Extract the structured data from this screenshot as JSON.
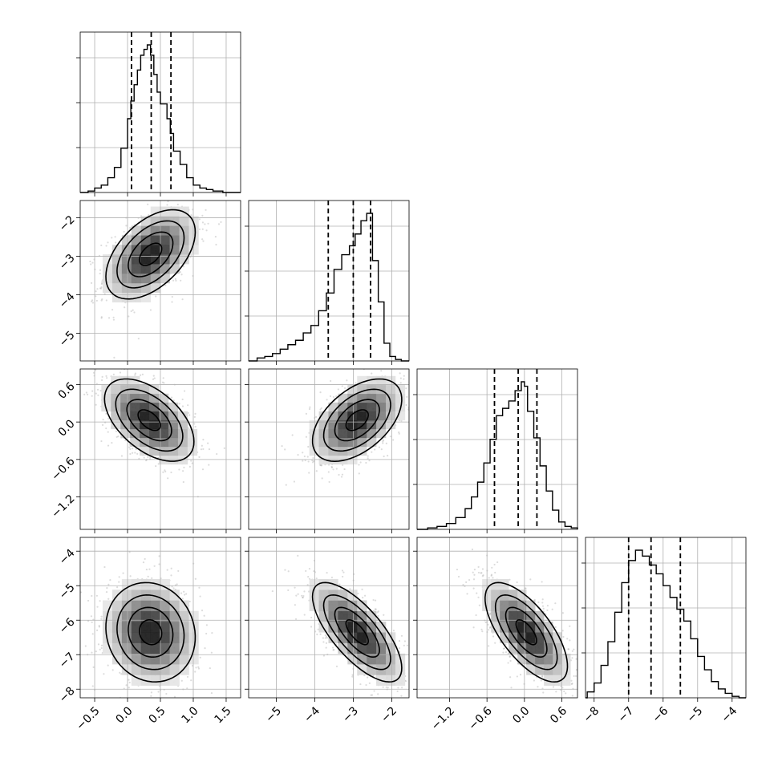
{
  "chart_data": {
    "type": "corner",
    "parameters": [
      {
        "range": [
          -0.72,
          1.72
        ],
        "ticks": [
          -0.5,
          0.0,
          0.5,
          1.0,
          1.5
        ],
        "tick_labels": [
          "−0.5",
          "0.0",
          "0.5",
          "1.0",
          "1.5"
        ],
        "quantiles": [
          0.06,
          0.36,
          0.66
        ],
        "hist": {
          "edges": [
            -0.6,
            -0.5,
            -0.4,
            -0.3,
            -0.2,
            -0.1,
            0.0,
            0.05,
            0.1,
            0.15,
            0.2,
            0.25,
            0.3,
            0.35,
            0.4,
            0.45,
            0.5,
            0.55,
            0.6,
            0.65,
            0.7,
            0.8,
            0.9,
            1.0,
            1.1,
            1.2,
            1.3,
            1.45
          ],
          "counts": [
            0.01,
            0.03,
            0.05,
            0.1,
            0.17,
            0.3,
            0.5,
            0.62,
            0.73,
            0.83,
            0.93,
            0.97,
            1.0,
            0.93,
            0.8,
            0.68,
            0.6,
            0.6,
            0.5,
            0.4,
            0.28,
            0.19,
            0.1,
            0.05,
            0.03,
            0.02,
            0.01
          ]
        }
      },
      {
        "range": [
          -5.72,
          -1.55
        ],
        "ticks": [
          -5,
          -4,
          -3,
          -2
        ],
        "tick_labels": [
          "−5",
          "−4",
          "−3",
          "−2"
        ],
        "quantiles": [
          -3.65,
          -3.0,
          -2.55
        ],
        "hist": {
          "edges": [
            -5.5,
            -5.3,
            -5.1,
            -4.9,
            -4.7,
            -4.5,
            -4.3,
            -4.1,
            -3.9,
            -3.7,
            -3.5,
            -3.3,
            -3.1,
            -2.95,
            -2.8,
            -2.65,
            -2.5,
            -2.35,
            -2.2,
            -2.05,
            -1.9,
            -1.75
          ],
          "counts": [
            0.02,
            0.03,
            0.05,
            0.08,
            0.11,
            0.14,
            0.19,
            0.24,
            0.34,
            0.46,
            0.62,
            0.72,
            0.78,
            0.86,
            0.95,
            1.0,
            0.68,
            0.4,
            0.12,
            0.03,
            0.01
          ]
        }
      },
      {
        "range": [
          -1.72,
          0.85
        ],
        "ticks": [
          -1.2,
          -0.6,
          0.0,
          0.6
        ],
        "tick_labels": [
          "−1.2",
          "−0.6",
          "0.0",
          "0.6"
        ],
        "quantiles": [
          -0.48,
          -0.1,
          0.2
        ],
        "hist": {
          "edges": [
            -1.55,
            -1.4,
            -1.25,
            -1.1,
            -0.95,
            -0.85,
            -0.75,
            -0.65,
            -0.55,
            -0.45,
            -0.35,
            -0.25,
            -0.15,
            -0.05,
            0.0,
            0.05,
            0.15,
            0.25,
            0.35,
            0.45,
            0.55,
            0.65,
            0.75,
            0.85
          ],
          "counts": [
            0.01,
            0.02,
            0.04,
            0.08,
            0.14,
            0.22,
            0.32,
            0.45,
            0.61,
            0.77,
            0.82,
            0.87,
            0.94,
            1.0,
            0.97,
            0.8,
            0.62,
            0.43,
            0.26,
            0.13,
            0.05,
            0.02,
            0.01
          ]
        }
      },
      {
        "range": [
          -8.25,
          -3.6
        ],
        "ticks": [
          -8,
          -7,
          -6,
          -5,
          -4
        ],
        "tick_labels": [
          "−8",
          "−7",
          "−6",
          "−5",
          "−4"
        ],
        "quantiles": [
          -7.0,
          -6.35,
          -5.5
        ],
        "hist": {
          "edges": [
            -8.2,
            -8.0,
            -7.8,
            -7.6,
            -7.4,
            -7.2,
            -7.0,
            -6.8,
            -6.6,
            -6.4,
            -6.2,
            -6.0,
            -5.8,
            -5.6,
            -5.4,
            -5.2,
            -5.0,
            -4.8,
            -4.6,
            -4.4,
            -4.2,
            -4.0,
            -3.8
          ],
          "counts": [
            0.04,
            0.1,
            0.22,
            0.38,
            0.58,
            0.78,
            0.93,
            1.0,
            0.96,
            0.9,
            0.84,
            0.76,
            0.68,
            0.6,
            0.52,
            0.4,
            0.28,
            0.19,
            0.11,
            0.06,
            0.03,
            0.01
          ]
        }
      }
    ],
    "pairs": [
      {
        "x": 0,
        "y": 1,
        "mean": [
          0.35,
          -2.95
        ],
        "sd": [
          0.34,
          0.58
        ],
        "rho": 0.5
      },
      {
        "x": 0,
        "y": 2,
        "mean": [
          0.33,
          0.03
        ],
        "sd": [
          0.34,
          0.33
        ],
        "rho": -0.52
      },
      {
        "x": 1,
        "y": 2,
        "mean": [
          -2.9,
          0.03
        ],
        "sd": [
          0.58,
          0.33
        ],
        "rho": 0.5
      },
      {
        "x": 0,
        "y": 3,
        "mean": [
          0.35,
          -6.35
        ],
        "sd": [
          0.34,
          0.72
        ],
        "rho": -0.1
      },
      {
        "x": 1,
        "y": 3,
        "mean": [
          -2.9,
          -6.35
        ],
        "sd": [
          0.58,
          0.72
        ],
        "rho": -0.72
      },
      {
        "x": 2,
        "y": 3,
        "mean": [
          0.03,
          -6.35
        ],
        "sd": [
          0.33,
          0.72
        ],
        "rho": -0.68
      }
    ],
    "contour_levels_sigma": [
      0.5,
      1.0,
      1.5,
      2.0
    ],
    "grid": true
  }
}
